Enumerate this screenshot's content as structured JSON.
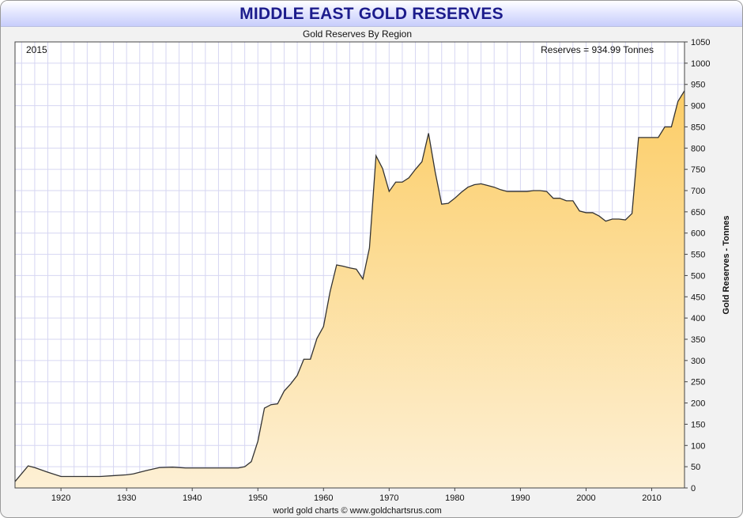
{
  "header": {
    "title": "MIDDLE EAST GOLD RESERVES"
  },
  "chart_data": {
    "type": "area",
    "title": "MIDDLE EAST GOLD RESERVES",
    "subtitle": "Gold Reserves By Region",
    "year_label": "2015",
    "reading_label": "Reserves = 934.99 Tonnes",
    "ylabel": "Gold Reserves - Tonnes",
    "xlabel": "",
    "footer": "world gold charts © www.goldchartsrus.com",
    "xlim": [
      1913,
      2015
    ],
    "ylim": [
      0,
      1050
    ],
    "x_ticks": [
      1920,
      1930,
      1940,
      1950,
      1960,
      1970,
      1980,
      1990,
      2000,
      2010
    ],
    "y_ticks": [
      0,
      50,
      100,
      150,
      200,
      250,
      300,
      350,
      400,
      450,
      500,
      550,
      600,
      650,
      700,
      750,
      800,
      850,
      900,
      950,
      1000,
      1050
    ],
    "grid": true,
    "colors": {
      "fill_top": "#fccd66",
      "fill_bottom": "#fdf0d5",
      "line": "#333333",
      "grid": "#d6d6f2"
    },
    "series": [
      {
        "name": "Gold Reserves",
        "x": [
          1913,
          1915,
          1916,
          1918,
          1920,
          1922,
          1924,
          1926,
          1928,
          1930,
          1931,
          1933,
          1935,
          1937,
          1939,
          1941,
          1943,
          1945,
          1946,
          1947,
          1948,
          1949,
          1950,
          1951,
          1952,
          1953,
          1954,
          1955,
          1956,
          1957,
          1958,
          1959,
          1960,
          1961,
          1962,
          1963,
          1964,
          1965,
          1966,
          1967,
          1968,
          1969,
          1970,
          1971,
          1972,
          1973,
          1974,
          1975,
          1976,
          1977,
          1978,
          1979,
          1980,
          1981,
          1982,
          1983,
          1984,
          1985,
          1986,
          1987,
          1988,
          1989,
          1990,
          1991,
          1992,
          1993,
          1994,
          1995,
          1996,
          1997,
          1998,
          1999,
          2000,
          2001,
          2002,
          2003,
          2004,
          2005,
          2006,
          2007,
          2008,
          2009,
          2010,
          2011,
          2012,
          2013,
          2014,
          2015
        ],
        "values": [
          15,
          52,
          48,
          37,
          27,
          27,
          27,
          27,
          29,
          31,
          33,
          41,
          48,
          49,
          47,
          47,
          47,
          47,
          47,
          47,
          50,
          62,
          110,
          188,
          196,
          198,
          228,
          245,
          265,
          303,
          303,
          352,
          380,
          462,
          525,
          522,
          518,
          515,
          492,
          565,
          782,
          752,
          698,
          720,
          720,
          730,
          750,
          768,
          835,
          745,
          668,
          670,
          682,
          696,
          708,
          714,
          716,
          712,
          708,
          702,
          698,
          698,
          698,
          698,
          700,
          700,
          698,
          682,
          682,
          676,
          676,
          652,
          648,
          648,
          640,
          628,
          633,
          633,
          631,
          646,
          825,
          825,
          825,
          825,
          850,
          850,
          910,
          935
        ]
      }
    ]
  }
}
